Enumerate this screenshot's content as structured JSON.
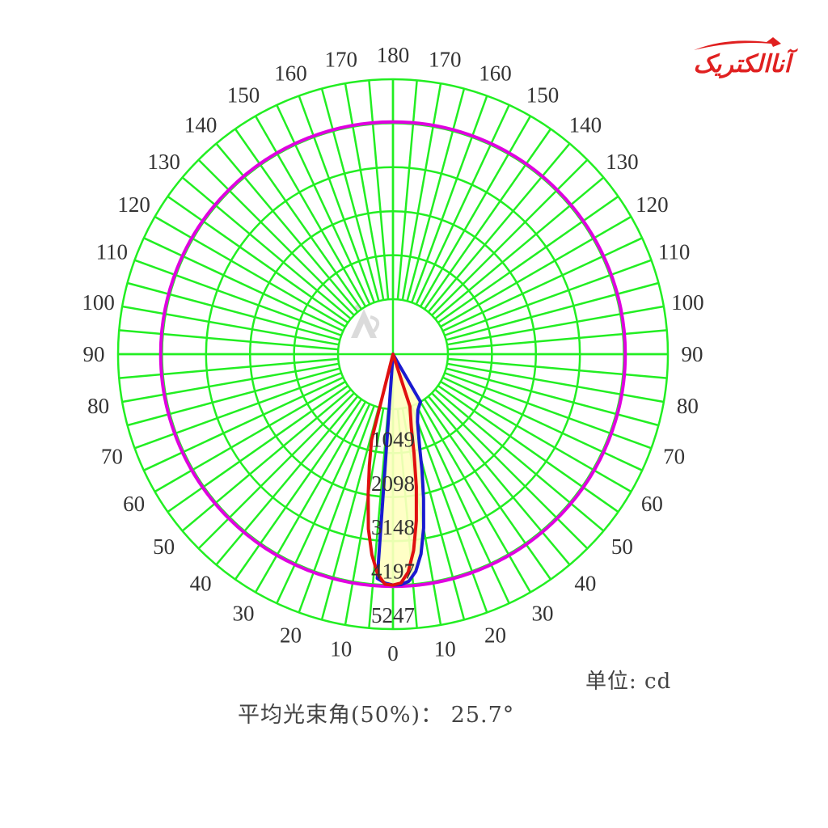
{
  "brand": {
    "name": "آناالکتریک",
    "color": "#e02020"
  },
  "footer": {
    "unit_label": "单位: cd",
    "beam_angle_label": "平均光束角(50%)： 25.7°"
  },
  "chart_data": {
    "type": "polar",
    "title": "",
    "unit": "cd",
    "radial_ticks": [
      1049,
      2098,
      3148,
      4197,
      5247
    ],
    "radial_max": 5247,
    "angle_labels_right": [
      "0",
      "10",
      "20",
      "30",
      "40",
      "50",
      "60",
      "70",
      "80",
      "90",
      "100",
      "110",
      "120",
      "130",
      "140",
      "150",
      "160",
      "170",
      "180"
    ],
    "angle_labels_left": [
      "10",
      "20",
      "30",
      "40",
      "50",
      "60",
      "70",
      "80",
      "90",
      "100",
      "110",
      "120",
      "130",
      "140",
      "150",
      "160",
      "170"
    ],
    "angle_grid_step_deg": 5,
    "grid_color": "#22ee22",
    "series": [
      {
        "color": "#e000e0",
        "angles": [
          0,
          20,
          40,
          60,
          80,
          90,
          100,
          120,
          140,
          160,
          180
        ],
        "values": [
          4230,
          4230,
          4230,
          4230,
          4230,
          4230,
          4230,
          4230,
          4230,
          4230,
          4230
        ]
      },
      {
        "color": "#1a1ad0",
        "fill": "#ffffc0",
        "angles": [
          -4,
          -2,
          0,
          2,
          4,
          6,
          8,
          10,
          12,
          14,
          16,
          18,
          20,
          24,
          30
        ],
        "values": [
          4050,
          4150,
          4197,
          4190,
          4120,
          3900,
          3500,
          2900,
          2200,
          1550,
          1000,
          650,
          400,
          150,
          0
        ]
      },
      {
        "color": "#e01010",
        "angles": [
          -14,
          -12,
          -10,
          -8,
          -6,
          -4,
          -2,
          0,
          2,
          4,
          6,
          8,
          10,
          12,
          14,
          18
        ],
        "values": [
          800,
          1400,
          2100,
          2900,
          3500,
          3950,
          4180,
          4197,
          4150,
          3900,
          3400,
          2700,
          1900,
          1100,
          500,
          0
        ]
      }
    ]
  }
}
